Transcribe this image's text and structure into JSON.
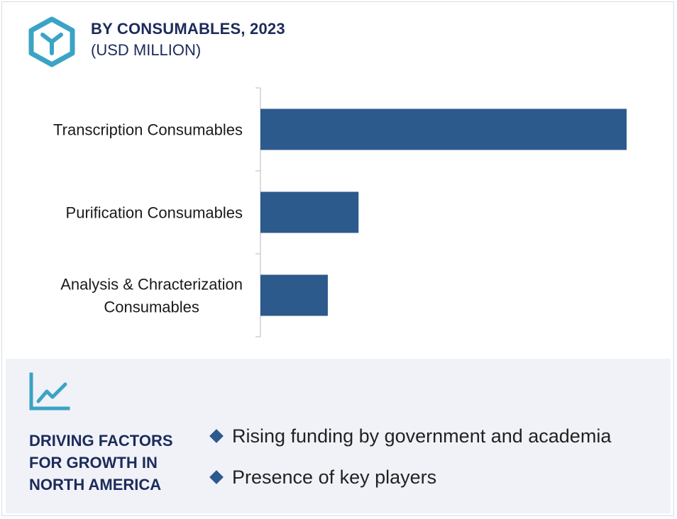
{
  "header": {
    "title": "BY CONSUMABLES, 2023",
    "subtitle": "(USD MILLION)",
    "icon": "hexagon-y-logo-icon"
  },
  "chart_data": {
    "type": "bar",
    "orientation": "horizontal",
    "title": "BY CONSUMABLES, 2023",
    "subtitle": "(USD MILLION)",
    "categories": [
      [
        "Transcription Consumables"
      ],
      [
        "Purification Consumables"
      ],
      [
        "Analysis & Chracterization",
        "Consumables"
      ]
    ],
    "values": [
      100,
      26.8,
      18.4
    ],
    "value_scale": "relative (no axis or data labels shown)",
    "xlim": [
      0,
      100
    ],
    "bar_color": "#2d5a8c",
    "grid": false,
    "legend": false
  },
  "footer": {
    "icon": "line-chart-trend-icon",
    "drivers_title": [
      "DRIVING FACTORS",
      "FOR GROWTH IN",
      "NORTH AMERICA"
    ],
    "bullets": [
      "Rising funding by government and academia",
      "Presence of key players"
    ]
  },
  "colors": {
    "accent": "#3ba3c6",
    "title": "#1c2b5a",
    "bar": "#2d5a8c",
    "footer_bg": "#f0f2f8"
  }
}
